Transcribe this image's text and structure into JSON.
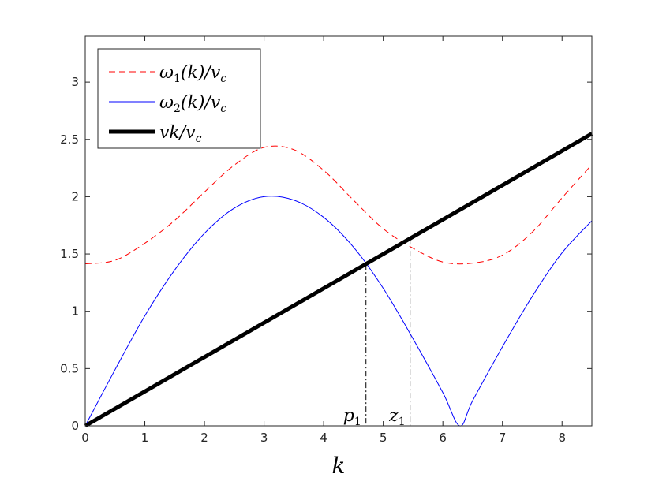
{
  "chart_data": {
    "type": "line",
    "title": "",
    "xlabel": "k",
    "ylabel": "",
    "xlim": [
      0,
      8.5
    ],
    "ylim": [
      0,
      3.4
    ],
    "xticks": [
      "0",
      "1",
      "2",
      "3",
      "4",
      "5",
      "6",
      "7",
      "8"
    ],
    "yticks": [
      "0",
      "0.5",
      "1",
      "1.5",
      "2",
      "2.5",
      "3"
    ],
    "grid": false,
    "legend_position": "top-left",
    "series": [
      {
        "name": "ω₁(k)/v_c",
        "color": "#ff0000",
        "style": "dashed",
        "x": [
          0,
          0.5,
          1,
          1.5,
          2,
          2.5,
          3,
          3.5,
          4,
          4.5,
          5,
          5.5,
          6,
          6.5,
          7,
          7.5,
          8,
          8.5
        ],
        "y": [
          1.414,
          1.445,
          1.594,
          1.792,
          2.04,
          2.275,
          2.43,
          2.41,
          2.23,
          1.97,
          1.72,
          1.55,
          1.43,
          1.42,
          1.49,
          1.69,
          1.99,
          2.28
        ]
      },
      {
        "name": "ω₂(k)/v_c",
        "color": "#0000ff",
        "style": "solid",
        "x": [
          0,
          0.5,
          1,
          1.5,
          2,
          2.5,
          3,
          3.5,
          4,
          4.5,
          5,
          5.5,
          6,
          6.283,
          6.5,
          7,
          7.5,
          8,
          8.5
        ],
        "y": [
          0,
          0.49,
          0.96,
          1.36,
          1.68,
          1.9,
          2.0,
          1.97,
          1.82,
          1.56,
          1.2,
          0.76,
          0.29,
          0,
          0.22,
          0.69,
          1.13,
          1.51,
          1.79
        ]
      },
      {
        "name": "vk/v_c",
        "color": "#000000",
        "style": "solid-thick",
        "x": [
          0,
          8.5
        ],
        "y": [
          0,
          2.55
        ]
      }
    ],
    "annotations": [
      {
        "label": "p",
        "subscript": "1",
        "x": 4.71,
        "y": 1.41
      },
      {
        "label": "z",
        "subscript": "1",
        "x": 5.45,
        "y": 1.63
      }
    ]
  }
}
